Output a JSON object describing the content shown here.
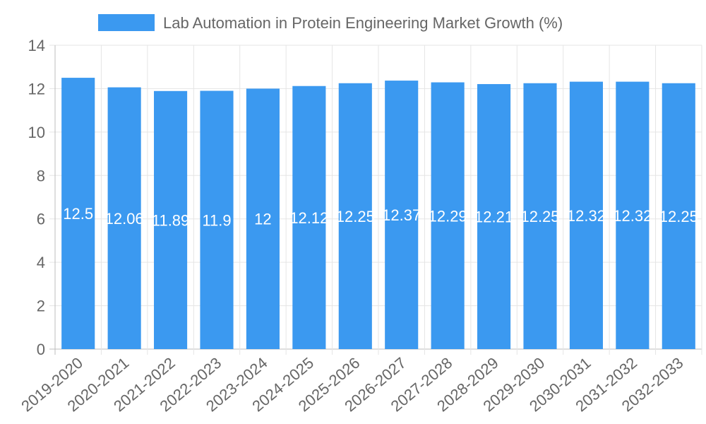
{
  "chart_data": {
    "type": "bar",
    "title": "",
    "legend": {
      "position": "top-center",
      "entries": [
        {
          "label": "Lab Automation in Protein Engineering Market Growth (%)",
          "color": "#3B99F0"
        }
      ]
    },
    "categories": [
      "2019-2020",
      "2020-2021",
      "2021-2022",
      "2022-2023",
      "2023-2024",
      "2024-2025",
      "2025-2026",
      "2026-2027",
      "2027-2028",
      "2028-2029",
      "2029-2030",
      "2030-2031",
      "2031-2032",
      "2032-2033"
    ],
    "series": [
      {
        "name": "Lab Automation in Protein Engineering Market Growth (%)",
        "color": "#3B99F0",
        "values": [
          12.5,
          12.06,
          11.89,
          11.9,
          12,
          12.12,
          12.25,
          12.37,
          12.29,
          12.21,
          12.25,
          12.32,
          12.32,
          12.25
        ],
        "data_labels": [
          "12.5",
          "12.06",
          "11.89",
          "11.9",
          "12",
          "12.12",
          "12.25",
          "12.37",
          "12.29",
          "12.21",
          "12.25",
          "12.32",
          "12.32",
          "12.25"
        ]
      }
    ],
    "xlabel": "",
    "ylabel": "",
    "ylim": [
      0,
      14
    ],
    "yticks": [
      0,
      2,
      4,
      6,
      8,
      10,
      12,
      14
    ],
    "grid": true,
    "colors": {
      "bar": "#3B99F0",
      "grid": "#E5E5E5",
      "axis": "#BDBDBD",
      "tick_text": "#666666",
      "data_label": "#FFFFFF",
      "legend_text": "#666666"
    }
  }
}
